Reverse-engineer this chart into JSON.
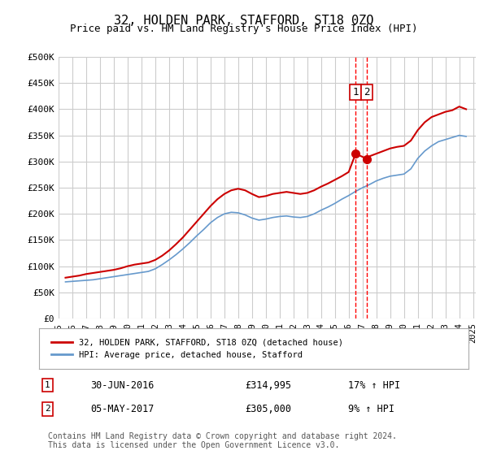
{
  "title": "32, HOLDEN PARK, STAFFORD, ST18 0ZQ",
  "subtitle": "Price paid vs. HM Land Registry's House Price Index (HPI)",
  "background_color": "#ffffff",
  "grid_color": "#cccccc",
  "ylim": [
    0,
    500000
  ],
  "yticks": [
    0,
    50000,
    100000,
    150000,
    200000,
    250000,
    300000,
    350000,
    400000,
    450000,
    500000
  ],
  "ytick_labels": [
    "£0",
    "£50K",
    "£100K",
    "£150K",
    "£200K",
    "£250K",
    "£300K",
    "£350K",
    "£400K",
    "£450K",
    "£500K"
  ],
  "red_line_color": "#cc0000",
  "blue_line_color": "#6699cc",
  "marker1_date_x": 2016.5,
  "marker1_y": 314995,
  "marker2_date_x": 2017.33,
  "marker2_y": 305000,
  "vline_color": "#ff0000",
  "legend_label_red": "32, HOLDEN PARK, STAFFORD, ST18 0ZQ (detached house)",
  "legend_label_blue": "HPI: Average price, detached house, Stafford",
  "annotation1_num": "1",
  "annotation1_date": "30-JUN-2016",
  "annotation1_price": "£314,995",
  "annotation1_hpi": "17% ↑ HPI",
  "annotation2_num": "2",
  "annotation2_date": "05-MAY-2017",
  "annotation2_price": "£305,000",
  "annotation2_hpi": "9% ↑ HPI",
  "footer": "Contains HM Land Registry data © Crown copyright and database right 2024.\nThis data is licensed under the Open Government Licence v3.0.",
  "red_x": [
    1995.5,
    1996.0,
    1996.5,
    1997.0,
    1997.5,
    1998.0,
    1998.5,
    1999.0,
    1999.5,
    2000.0,
    2000.5,
    2001.0,
    2001.5,
    2002.0,
    2002.5,
    2003.0,
    2003.5,
    2004.0,
    2004.5,
    2005.0,
    2005.5,
    2006.0,
    2006.5,
    2007.0,
    2007.5,
    2008.0,
    2008.5,
    2009.0,
    2009.5,
    2010.0,
    2010.5,
    2011.0,
    2011.5,
    2012.0,
    2012.5,
    2013.0,
    2013.5,
    2014.0,
    2014.5,
    2015.0,
    2015.5,
    2016.0,
    2016.5,
    2017.33,
    2017.5,
    2018.0,
    2018.5,
    2019.0,
    2019.5,
    2020.0,
    2020.5,
    2021.0,
    2021.5,
    2022.0,
    2022.5,
    2023.0,
    2023.5,
    2024.0,
    2024.5
  ],
  "red_y": [
    78000,
    80000,
    82000,
    85000,
    87000,
    89000,
    91000,
    93000,
    96000,
    100000,
    103000,
    105000,
    107000,
    112000,
    120000,
    130000,
    142000,
    155000,
    170000,
    185000,
    200000,
    215000,
    228000,
    238000,
    245000,
    248000,
    245000,
    238000,
    232000,
    234000,
    238000,
    240000,
    242000,
    240000,
    238000,
    240000,
    245000,
    252000,
    258000,
    265000,
    272000,
    280000,
    314995,
    305000,
    310000,
    315000,
    320000,
    325000,
    328000,
    330000,
    340000,
    360000,
    375000,
    385000,
    390000,
    395000,
    398000,
    405000,
    400000
  ],
  "blue_x": [
    1995.5,
    1996.0,
    1996.5,
    1997.0,
    1997.5,
    1998.0,
    1998.5,
    1999.0,
    1999.5,
    2000.0,
    2000.5,
    2001.0,
    2001.5,
    2002.0,
    2002.5,
    2003.0,
    2003.5,
    2004.0,
    2004.5,
    2005.0,
    2005.5,
    2006.0,
    2006.5,
    2007.0,
    2007.5,
    2008.0,
    2008.5,
    2009.0,
    2009.5,
    2010.0,
    2010.5,
    2011.0,
    2011.5,
    2012.0,
    2012.5,
    2013.0,
    2013.5,
    2014.0,
    2014.5,
    2015.0,
    2015.5,
    2016.0,
    2016.5,
    2017.0,
    2017.5,
    2018.0,
    2018.5,
    2019.0,
    2019.5,
    2020.0,
    2020.5,
    2021.0,
    2021.5,
    2022.0,
    2022.5,
    2023.0,
    2023.5,
    2024.0,
    2024.5
  ],
  "blue_y": [
    70000,
    71000,
    72000,
    73000,
    74000,
    76000,
    78000,
    80000,
    82000,
    84000,
    86000,
    88000,
    90000,
    95000,
    103000,
    112000,
    122000,
    133000,
    145000,
    158000,
    170000,
    183000,
    193000,
    200000,
    203000,
    202000,
    198000,
    192000,
    188000,
    190000,
    193000,
    195000,
    196000,
    194000,
    193000,
    195000,
    200000,
    207000,
    213000,
    220000,
    228000,
    235000,
    243000,
    250000,
    256000,
    263000,
    268000,
    272000,
    274000,
    276000,
    286000,
    306000,
    320000,
    330000,
    338000,
    342000,
    346000,
    350000,
    348000
  ],
  "xlim_left": 1995.0,
  "xlim_right": 2025.2,
  "xticks": [
    1995,
    1996,
    1997,
    1998,
    1999,
    2000,
    2001,
    2002,
    2003,
    2004,
    2005,
    2006,
    2007,
    2008,
    2009,
    2010,
    2011,
    2012,
    2013,
    2014,
    2015,
    2016,
    2017,
    2018,
    2019,
    2020,
    2021,
    2022,
    2023,
    2024,
    2025
  ]
}
